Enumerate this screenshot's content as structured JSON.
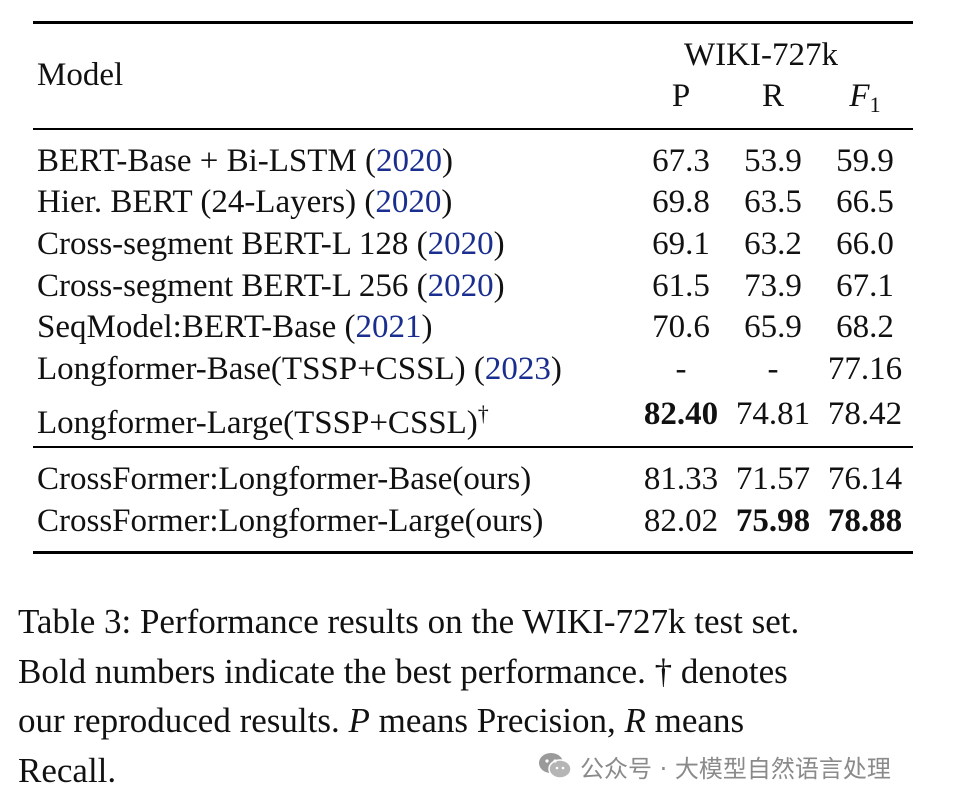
{
  "table": {
    "header": {
      "model_label": "Model",
      "dataset": "WIKI-727k",
      "col_p": "P",
      "col_r": "R",
      "col_f": "F",
      "col_f_sub": "1"
    },
    "rows": [
      {
        "name": "BERT-Base + Bi-LSTM",
        "cite": "2020",
        "p": "67.3",
        "r": "53.9",
        "f": "59.9"
      },
      {
        "name": "Hier. BERT (24-Layers)",
        "cite": "2020",
        "p": "69.8",
        "r": "63.5",
        "f": "66.5"
      },
      {
        "name": "Cross-segment BERT-L 128",
        "cite": "2020",
        "p": "69.1",
        "r": "63.2",
        "f": "66.0"
      },
      {
        "name": "Cross-segment BERT-L 256",
        "cite": "2020",
        "p": "61.5",
        "r": "73.9",
        "f": "67.1"
      },
      {
        "name": "SeqModel:BERT-Base",
        "cite": "2021",
        "p": "70.6",
        "r": "65.9",
        "f": "68.2"
      },
      {
        "name": "Longformer-Base(TSSP+CSSL)",
        "cite": "2023",
        "p": "-",
        "r": "-",
        "f": "77.16"
      },
      {
        "name": "Longformer-Large(TSSP+CSSL)",
        "dagger": "†",
        "p": "82.40",
        "r": "74.81",
        "f": "78.42"
      }
    ],
    "ours": [
      {
        "name": "CrossFormer:Longformer-Base(ours)",
        "p": "81.33",
        "r": "71.57",
        "f": "76.14"
      },
      {
        "name": "CrossFormer:Longformer-Large(ours)",
        "p": "82.02",
        "r": "75.98",
        "f": "78.88"
      }
    ]
  },
  "caption": {
    "line1": "Table 3:  Performance results on the WIKI-727k test set.",
    "line2": "Bold numbers indicate the best performance. † denotes",
    "line3_a": "our reproduced results. ",
    "line3_p": "P",
    "line3_b": " means Precision, ",
    "line3_r": "R",
    "line3_c": " means",
    "line4": "Recall."
  },
  "watermark": {
    "text": "公众号 · 大模型自然语言处理",
    "icon": "wechat-icon"
  }
}
